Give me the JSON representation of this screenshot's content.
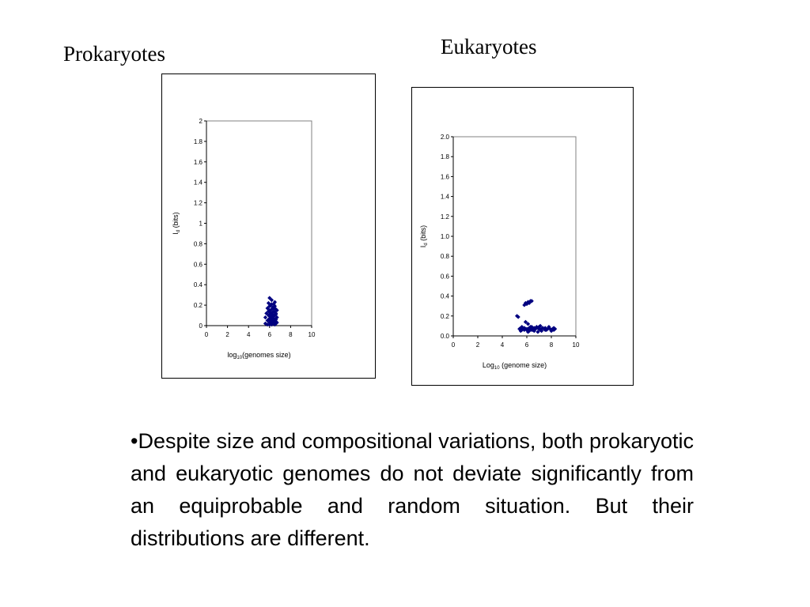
{
  "titles": {
    "left": "Prokaryotes",
    "right": "Eukaryotes"
  },
  "body_text": "•Despite size and compositional variations, both prokaryotic and eukaryotic genomes do not deviate significantly from an equiprobable and random situation.  But their distributions are different.",
  "colors": {
    "marker": "#000080",
    "axis": "#000000",
    "plot_border": "#808080"
  },
  "chart_data": [
    {
      "type": "scatter",
      "panel": "Prokaryotes",
      "xlabel": "log10(genomes size)",
      "ylabel": "Id (bits)",
      "xlim": [
        0,
        10
      ],
      "ylim": [
        0,
        2
      ],
      "xticks": [
        "0",
        "2",
        "4",
        "6",
        "8",
        "10"
      ],
      "yticks": [
        "0",
        "0.2",
        "0.4",
        "0.6",
        "0.8",
        "1",
        "1.2",
        "1.4",
        "1.6",
        "1.8",
        "2"
      ],
      "grid": false,
      "series": [
        {
          "marker": "diamond",
          "x": [
            5.6,
            5.8,
            5.9,
            6.0,
            6.0,
            6.1,
            6.1,
            6.2,
            6.2,
            6.3,
            6.3,
            6.4,
            6.4,
            6.5,
            6.5,
            6.6,
            6.6,
            6.7,
            5.7,
            5.9,
            6.0,
            6.1,
            6.2,
            6.3,
            6.4,
            6.5,
            6.6,
            6.7,
            5.8,
            6.0,
            6.2,
            6.4,
            6.6,
            5.9,
            6.1,
            6.3,
            6.5,
            6.7,
            6.0,
            6.2,
            6.4,
            6.6,
            6.1,
            6.3,
            6.5,
            5.6,
            6.2,
            6.4,
            6.0,
            6.3,
            6.5,
            5.8,
            6.1,
            6.4,
            6.6,
            6.0,
            6.2,
            6.5,
            5.9,
            6.3
          ],
          "y": [
            0.02,
            0.05,
            0.1,
            0.03,
            0.15,
            0.08,
            0.2,
            0.05,
            0.12,
            0.02,
            0.18,
            0.07,
            0.14,
            0.04,
            0.1,
            0.06,
            0.16,
            0.03,
            0.12,
            0.22,
            0.01,
            0.13,
            0.25,
            0.09,
            0.02,
            0.19,
            0.11,
            0.08,
            0.17,
            0.06,
            0.01,
            0.21,
            0.04,
            0.14,
            0.03,
            0.07,
            0.13,
            0.15,
            0.27,
            0.16,
            0.1,
            0.02,
            0.09,
            0.04,
            0.06,
            0.08,
            0.21,
            0.17,
            0.11,
            0.13,
            0.23,
            0.01,
            0.07,
            0.05,
            0.12,
            0.19,
            0.03,
            0.01,
            0.06,
            0.1
          ]
        }
      ]
    },
    {
      "type": "scatter",
      "panel": "Eukaryotes",
      "xlabel": "Log10 (genome size)",
      "ylabel": "Id (bits)",
      "xlim": [
        0,
        10
      ],
      "ylim": [
        0,
        2
      ],
      "xticks": [
        "0",
        "2",
        "4",
        "6",
        "8",
        "10"
      ],
      "yticks": [
        "0.0",
        "0.2",
        "0.4",
        "0.6",
        "0.8",
        "1.0",
        "1.2",
        "1.4",
        "1.6",
        "1.8",
        "2.0"
      ],
      "grid": false,
      "series": [
        {
          "marker": "diamond",
          "x": [
            5.2,
            5.3,
            5.8,
            5.9,
            6.0,
            6.1,
            6.2,
            6.3,
            6.4,
            5.9,
            6.1,
            6.3,
            5.4,
            5.5,
            5.6,
            5.7,
            5.8,
            5.9,
            6.0,
            6.1,
            6.2,
            6.3,
            6.4,
            6.5,
            6.6,
            6.7,
            6.8,
            6.9,
            7.0,
            7.1,
            7.2,
            7.3,
            7.4,
            7.5,
            7.6,
            7.7,
            7.8,
            7.9,
            8.0,
            8.1,
            8.2,
            8.3,
            5.5,
            5.8,
            6.0,
            6.2,
            6.5,
            6.8,
            7.0,
            7.2,
            7.5,
            7.8,
            8.0,
            8.2,
            6.9,
            7.1,
            6.4,
            6.6,
            5.6,
            6.1
          ],
          "y": [
            0.2,
            0.19,
            0.31,
            0.33,
            0.32,
            0.34,
            0.33,
            0.35,
            0.35,
            0.14,
            0.12,
            0.09,
            0.07,
            0.08,
            0.06,
            0.07,
            0.08,
            0.07,
            0.06,
            0.07,
            0.08,
            0.07,
            0.06,
            0.07,
            0.08,
            0.07,
            0.09,
            0.08,
            0.07,
            0.06,
            0.07,
            0.08,
            0.07,
            0.08,
            0.06,
            0.07,
            0.08,
            0.07,
            0.06,
            0.07,
            0.08,
            0.07,
            0.05,
            0.06,
            0.07,
            0.05,
            0.06,
            0.08,
            0.09,
            0.05,
            0.06,
            0.09,
            0.05,
            0.06,
            0.04,
            0.1,
            0.09,
            0.05,
            0.09,
            0.04
          ]
        }
      ]
    }
  ]
}
